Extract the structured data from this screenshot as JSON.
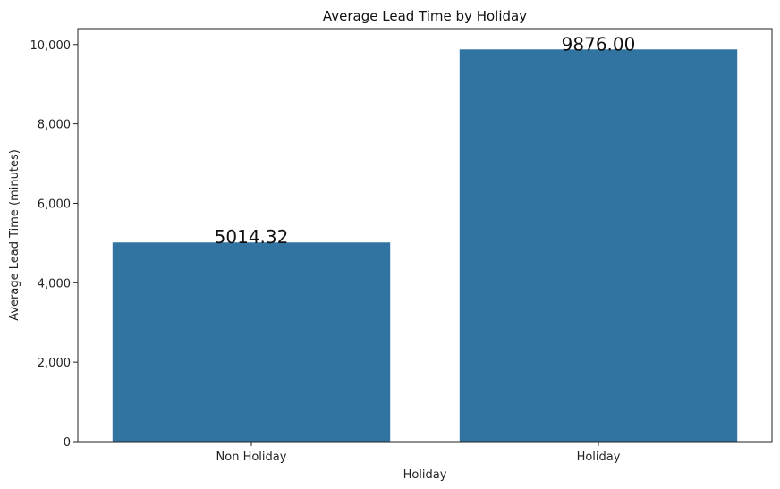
{
  "chart_data": {
    "type": "bar",
    "title": "Average Lead Time by Holiday",
    "xlabel": "Holiday",
    "ylabel": "Average Lead Time (minutes)",
    "categories": [
      "Non Holiday",
      "Holiday"
    ],
    "values": [
      5014.32,
      9876.0
    ],
    "data_labels": [
      "5014.32",
      "9876.00"
    ],
    "ylim": [
      0,
      10400
    ],
    "yticks": [
      0,
      2000,
      4000,
      6000,
      8000,
      10000
    ],
    "ytick_labels": [
      "0",
      "2,000",
      "4,000",
      "6,000",
      "8,000",
      "10,000"
    ],
    "grid": false,
    "bar_color": "#3274a1"
  }
}
